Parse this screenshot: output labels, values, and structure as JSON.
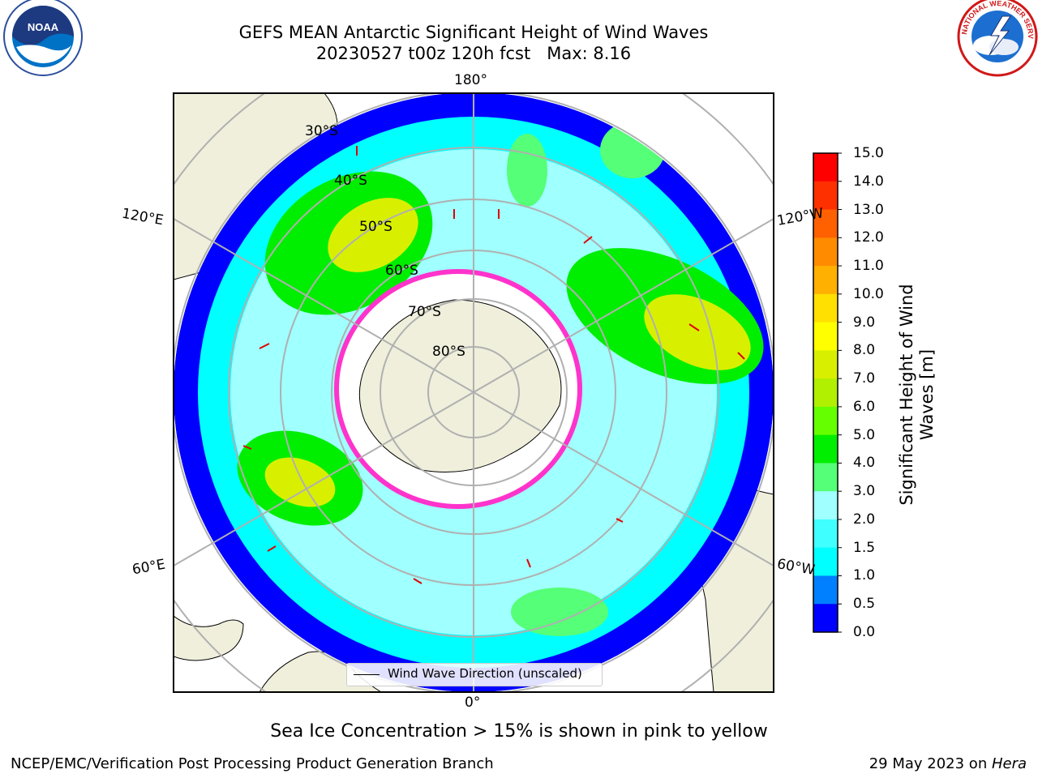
{
  "header": {
    "title_line1": "GEFS MEAN Antarctic Significant Height of Wind Waves",
    "title_line2": "20230527 t00z 120h fcst   Max: 8.16"
  },
  "logos": {
    "noaa_text": "NOAA",
    "nws_text": "NATIONAL WEATHER SERVICE"
  },
  "map": {
    "projection": "south-polar-stereographic",
    "lon_labels": {
      "top": "180°",
      "upper_left": "120°E",
      "upper_right": "120°W",
      "lower_left": "60°E",
      "lower_right": "60°W",
      "bottom": "0°"
    },
    "lat_labels": [
      "30°S",
      "40°S",
      "50°S",
      "60°S",
      "70°S",
      "80°S"
    ],
    "legend_label": "Wind Wave Direction (unscaled)",
    "colors": {
      "land": "#efefdc",
      "ice": "#ffffff",
      "ice_edge": "#ff33cc",
      "grid": "#b0b0b0"
    }
  },
  "colorbar": {
    "label": "Significant Height of Wind Waves [m]",
    "ticks": [
      "15.0",
      "14.0",
      "13.0",
      "12.0",
      "11.0",
      "10.0",
      "9.0",
      "8.0",
      "7.0",
      "6.0",
      "5.0",
      "4.0",
      "3.0",
      "2.0",
      "1.5",
      "1.0",
      "0.5",
      "0.0"
    ],
    "colors": [
      "#0000ff",
      "#0080ff",
      "#00ffff",
      "#40ffff",
      "#a0ffff",
      "#55ff77",
      "#00ee00",
      "#66ff00",
      "#b0f000",
      "#d8f000",
      "#ffff00",
      "#ffe000",
      "#ffb000",
      "#ff8c00",
      "#ff6000",
      "#ff3000",
      "#ff0000"
    ]
  },
  "footer": {
    "note": "Sea Ice Concentration > 15% is shown in pink to yellow",
    "left": "NCEP/EMC/Verification Post Processing Product Generation Branch",
    "date": "29 May 2023 on ",
    "machine": "Hera"
  }
}
